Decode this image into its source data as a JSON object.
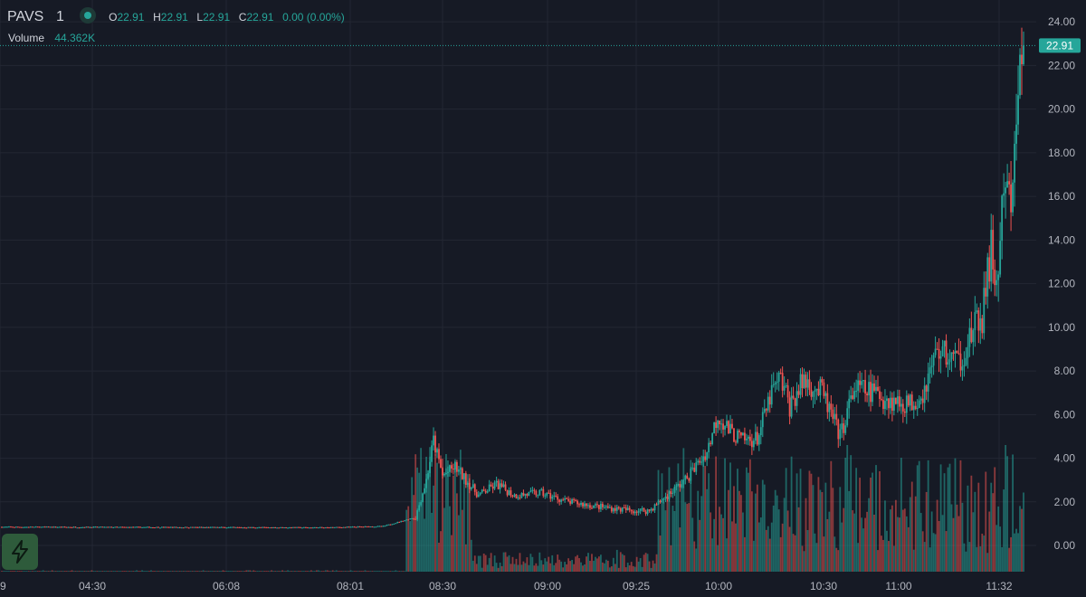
{
  "legend": {
    "symbol": "PAVS",
    "interval": "1",
    "open_label": "O",
    "open": "22.91",
    "high_label": "H",
    "high": "22.91",
    "low_label": "L",
    "low": "22.91",
    "close_label": "C",
    "close": "22.91",
    "change": "0.00 (0.00%)"
  },
  "volume_legend": {
    "label": "Volume",
    "value": "44.362K"
  },
  "colors": {
    "up": "#26a69a",
    "down": "#ef5350",
    "background": "#161a25",
    "grid": "#232733",
    "text": "#b2b5be"
  },
  "icons": {
    "quick_trade": "lightning-bolt-icon"
  },
  "chart_data": {
    "type": "candlestick",
    "y_axis": {
      "min": -1.2,
      "max": 25,
      "ticks": [
        24,
        22,
        20,
        18,
        16,
        14,
        12,
        10,
        8,
        6,
        4,
        2,
        0
      ],
      "tick_labels": [
        "24.00",
        "22.00",
        "20.00",
        "18.00",
        "16.00",
        "14.00",
        "12.00",
        "10.00",
        "8.00",
        "6.00",
        "4.00",
        "2.00",
        "0.00"
      ]
    },
    "x_axis": {
      "tick_labels": [
        "9",
        "04:30",
        "06:08",
        "08:01",
        "08:30",
        "09:00",
        "09:25",
        "10:00",
        "10:30",
        "11:00",
        "11:32"
      ]
    },
    "last_price": 22.91,
    "last_price_label": "22.91",
    "grid": true,
    "volume_pane": true,
    "anchors": [
      {
        "t": 0,
        "p": 0.85
      },
      {
        "t": 180,
        "p": 0.82
      },
      {
        "t": 212,
        "p": 0.88
      },
      {
        "t": 230,
        "p": 1.3
      },
      {
        "t": 236,
        "p": 3.0
      },
      {
        "t": 240,
        "p": 4.8
      },
      {
        "t": 245,
        "p": 3.2
      },
      {
        "t": 252,
        "p": 3.6
      },
      {
        "t": 258,
        "p": 3.0
      },
      {
        "t": 265,
        "p": 2.3
      },
      {
        "t": 275,
        "p": 2.8
      },
      {
        "t": 285,
        "p": 2.3
      },
      {
        "t": 300,
        "p": 2.4
      },
      {
        "t": 315,
        "p": 2.0
      },
      {
        "t": 330,
        "p": 1.8
      },
      {
        "t": 350,
        "p": 1.6
      },
      {
        "t": 360,
        "p": 1.6
      },
      {
        "t": 370,
        "p": 2.3
      },
      {
        "t": 380,
        "p": 3.0
      },
      {
        "t": 392,
        "p": 4.3
      },
      {
        "t": 398,
        "p": 6.0
      },
      {
        "t": 405,
        "p": 5.2
      },
      {
        "t": 412,
        "p": 4.8
      },
      {
        "t": 420,
        "p": 4.9
      },
      {
        "t": 428,
        "p": 7.0
      },
      {
        "t": 433,
        "p": 7.6
      },
      {
        "t": 438,
        "p": 6.4
      },
      {
        "t": 446,
        "p": 7.6
      },
      {
        "t": 456,
        "p": 7.0
      },
      {
        "t": 466,
        "p": 5.0
      },
      {
        "t": 474,
        "p": 7.2
      },
      {
        "t": 485,
        "p": 7.0
      },
      {
        "t": 495,
        "p": 6.6
      },
      {
        "t": 505,
        "p": 6.5
      },
      {
        "t": 512,
        "p": 7.0
      },
      {
        "t": 520,
        "p": 9.0
      },
      {
        "t": 532,
        "p": 8.4
      },
      {
        "t": 538,
        "p": 9.5
      },
      {
        "t": 545,
        "p": 10.5
      },
      {
        "t": 550,
        "p": 13.5
      },
      {
        "t": 553,
        "p": 11.8
      },
      {
        "t": 557,
        "p": 16.0
      },
      {
        "t": 562,
        "p": 15.8
      },
      {
        "t": 565,
        "p": 21.5
      },
      {
        "t": 568,
        "p": 22.91
      }
    ]
  }
}
